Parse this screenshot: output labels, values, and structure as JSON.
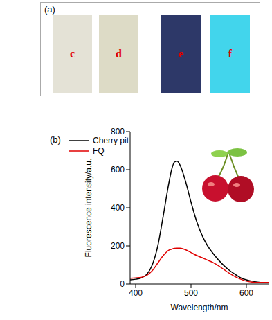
{
  "panel_a": {
    "label": "(a)",
    "strips": [
      {
        "label": "c",
        "color": "#e4e2d6"
      },
      {
        "label": "d",
        "color": "#dddbc6"
      },
      {
        "label": "e",
        "color": "#2d3868"
      },
      {
        "label": "f",
        "color": "#42d5ec"
      }
    ]
  },
  "chart_data": {
    "type": "line",
    "title": "(b)",
    "x_label": "Wavelength/nm",
    "y_label": "Fluorescence intensity/a.u.",
    "x": [
      390,
      400,
      410,
      420,
      430,
      440,
      450,
      460,
      465,
      470,
      475,
      480,
      490,
      500,
      510,
      520,
      530,
      540,
      550,
      560,
      570,
      580,
      590,
      600,
      610,
      620,
      630,
      640
    ],
    "series": [
      {
        "name": "Cherry pit",
        "color": "#000000",
        "values": [
          22,
          25,
          32,
          50,
          100,
          200,
          360,
          530,
          600,
          640,
          645,
          625,
          540,
          430,
          330,
          255,
          200,
          160,
          125,
          95,
          70,
          50,
          32,
          22,
          15,
          10,
          8,
          8
        ]
      },
      {
        "name": "FQ",
        "color": "#e00000",
        "values": [
          30,
          32,
          35,
          45,
          70,
          110,
          150,
          178,
          183,
          187,
          188,
          188,
          180,
          165,
          150,
          138,
          125,
          112,
          95,
          75,
          55,
          38,
          25,
          15,
          10,
          8,
          8,
          8
        ]
      }
    ],
    "xlim": [
      390,
      640
    ],
    "xticks": [
      400,
      500,
      600
    ],
    "ylim": [
      0,
      800
    ],
    "yticks": [
      0,
      200,
      400,
      600,
      800
    ],
    "grid": false,
    "legend": "upper left"
  }
}
